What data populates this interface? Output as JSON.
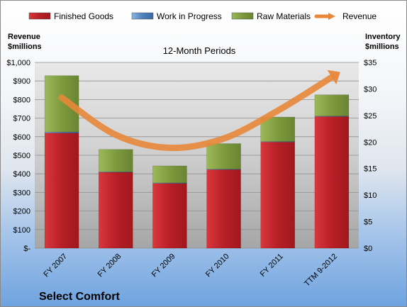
{
  "chart_data": {
    "type": "bar",
    "title": "12-Month Periods",
    "left_axis_title": [
      "Revenue",
      "$millions"
    ],
    "right_axis_title": [
      "Inventory",
      "$millions"
    ],
    "categories": [
      "FY 2007",
      "FY 2008",
      "FY 2009",
      "FY 2010",
      "FY 2011",
      "TTM 9-2012"
    ],
    "stacked": true,
    "series": [
      {
        "name": "Finished Goods",
        "axis": "right",
        "color": "#c0272d",
        "values": [
          21.7,
          14.3,
          12.2,
          14.8,
          20.0,
          24.8
        ]
      },
      {
        "name": "Work in Progress",
        "axis": "right",
        "color": "#4f81bd",
        "values": [
          0.2,
          0.1,
          0.1,
          0.1,
          0.1,
          0.1
        ]
      },
      {
        "name": "Raw Materials",
        "axis": "right",
        "color": "#8aa84b",
        "values": [
          10.6,
          4.2,
          3.2,
          4.8,
          4.6,
          4.0
        ]
      }
    ],
    "line_series": {
      "name": "Revenue",
      "axis": "left",
      "color": "#e8873a",
      "values": [
        810,
        610,
        540,
        590,
        740,
        920
      ]
    },
    "left_axis": {
      "min": 0,
      "max": 1000,
      "step": 100,
      "tick_labels": [
        "$-",
        "$100",
        "$200",
        "$300",
        "$400",
        "$500",
        "$600",
        "$700",
        "$800",
        "$900",
        "$1,000"
      ]
    },
    "right_axis": {
      "min": 0,
      "max": 35,
      "step": 5,
      "tick_labels": [
        "$0",
        "$5",
        "$10",
        "$15",
        "$20",
        "$25",
        "$30",
        "$35"
      ]
    },
    "legend_position": "top",
    "grid": true
  },
  "footer": {
    "company": "Select Comfort"
  }
}
